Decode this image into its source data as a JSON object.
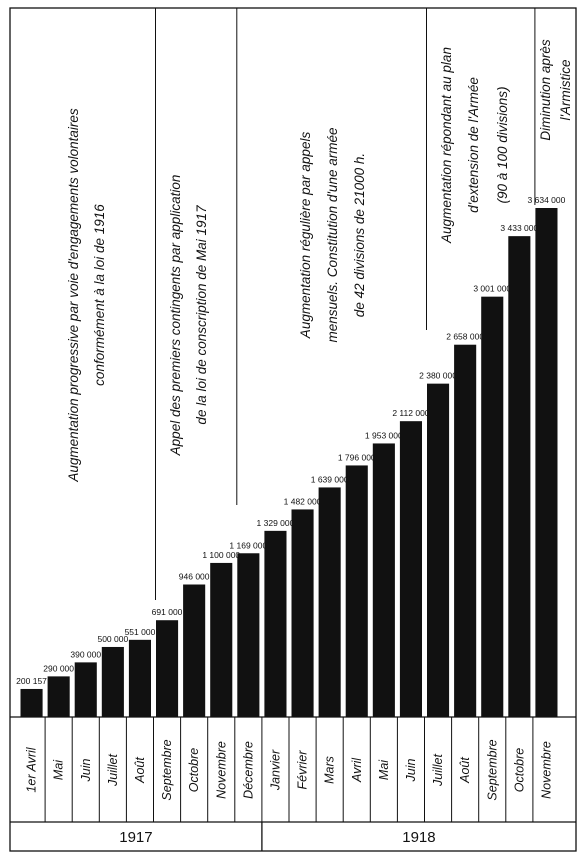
{
  "chart_data": {
    "type": "bar",
    "categories": [
      "1er Avril",
      "Mai",
      "Juin",
      "Juillet",
      "Août",
      "Septembre",
      "Octobre",
      "Novembre",
      "Décembre",
      "Janvier",
      "Février",
      "Mars",
      "Avril",
      "Mai",
      "Juin",
      "Juillet",
      "Août",
      "Septembre",
      "Octobre",
      "Novembre"
    ],
    "values": [
      200157,
      290000,
      390000,
      500000,
      551000,
      691000,
      946000,
      1100000,
      1169000,
      1329000,
      1482000,
      1639000,
      1796000,
      1953000,
      2112000,
      2380000,
      2658000,
      3001000,
      3433000,
      3634000
    ],
    "value_labels": [
      "200 157",
      "290 000",
      "390 000",
      "500 000",
      "551 000",
      "691 000",
      "946 000",
      "1 100 000",
      "1 169 000",
      "1 329 000",
      "1 482 000",
      "1 639 000",
      "1 796 000",
      "1 953 000",
      "2 112 000",
      "2 380 000",
      "2 658 000",
      "3 001 000",
      "3 433 000",
      "3 634 000"
    ],
    "color": "#111111",
    "years": [
      {
        "label": "1917",
        "count": 9
      },
      {
        "label": "1918",
        "count": 11
      }
    ],
    "annotations": [
      [
        "Augmentation progressive par voie d'engagements volontaires",
        "conformément à la loi de 1916"
      ],
      [
        "Appel des premiers contingents par application",
        "de la loi de conscription de Mai 1917"
      ],
      [
        "Augmentation régulière par appels",
        "mensuels. Constitution d'une armée",
        "de 42 divisions de 21000 h."
      ],
      [
        "Augmentation répondant au plan",
        "d'extension de l'Armée",
        "(90 à 100 divisions)"
      ],
      [
        "Diminution après",
        "l'Armistice"
      ]
    ]
  }
}
